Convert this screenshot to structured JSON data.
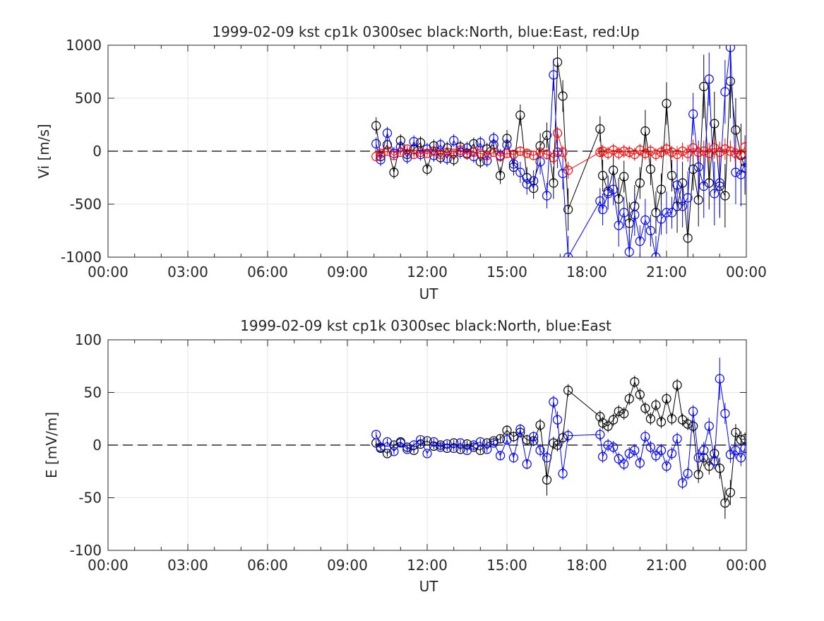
{
  "chart_data": [
    {
      "type": "scatter",
      "title": "1999-02-09 kst cp1k 0300sec black:North, blue:East, red:Up",
      "xlabel": "UT",
      "ylabel": "Vi [m/s]",
      "xlim": [
        0,
        24
      ],
      "ylim": [
        -1000,
        1000
      ],
      "x_ticks": [
        "00:00",
        "03:00",
        "06:00",
        "09:00",
        "12:00",
        "15:00",
        "18:00",
        "21:00",
        "00:00"
      ],
      "y_ticks": [
        "1000",
        "500",
        "0",
        "-500",
        "-1000"
      ],
      "y_tick_values": [
        1000,
        500,
        0,
        -500,
        -1000
      ],
      "grid": true,
      "zero_line": "dashed",
      "series": [
        {
          "name": "North",
          "color": "#000000",
          "x": [
            10.08,
            10.25,
            10.5,
            10.75,
            11.0,
            11.25,
            11.5,
            11.75,
            12.0,
            12.25,
            12.5,
            12.75,
            13.0,
            13.25,
            13.5,
            13.75,
            14.0,
            14.25,
            14.5,
            14.75,
            15.0,
            15.25,
            15.5,
            15.75,
            16.0,
            16.25,
            16.5,
            16.75,
            16.9,
            17.1,
            17.3,
            18.5,
            18.6,
            18.8,
            19.0,
            19.2,
            19.4,
            19.6,
            19.8,
            20.0,
            20.2,
            20.4,
            20.6,
            20.8,
            21.0,
            21.2,
            21.4,
            21.6,
            21.8,
            22.0,
            22.2,
            22.4,
            22.6,
            22.8,
            23.0,
            23.2,
            23.4,
            23.6,
            23.8,
            23.95
          ],
          "y": [
            240,
            -50,
            60,
            -200,
            100,
            -30,
            20,
            80,
            -170,
            50,
            -60,
            30,
            -80,
            40,
            -20,
            70,
            -100,
            20,
            60,
            -230,
            120,
            -150,
            340,
            -250,
            -350,
            50,
            150,
            -300,
            840,
            520,
            -550,
            210,
            -230,
            -380,
            -180,
            -450,
            -240,
            -680,
            -520,
            -300,
            190,
            -170,
            -580,
            -360,
            450,
            -230,
            -520,
            -300,
            -820,
            -170,
            -460,
            610,
            -300,
            260,
            -330,
            -420,
            660,
            200,
            -40,
            -160
          ],
          "y_err": [
            80,
            60,
            60,
            60,
            60,
            60,
            60,
            60,
            60,
            60,
            60,
            60,
            60,
            60,
            60,
            60,
            60,
            60,
            60,
            80,
            80,
            80,
            100,
            100,
            100,
            120,
            120,
            150,
            150,
            150,
            200,
            120,
            150,
            150,
            150,
            200,
            150,
            200,
            200,
            150,
            200,
            150,
            200,
            150,
            200,
            150,
            250,
            200,
            250,
            200,
            250,
            300,
            250,
            300,
            300,
            300,
            350,
            300,
            300,
            250
          ]
        },
        {
          "name": "East",
          "color": "#0000ff",
          "x": [
            10.08,
            10.25,
            10.5,
            10.75,
            11.0,
            11.25,
            11.5,
            11.75,
            12.0,
            12.25,
            12.5,
            12.75,
            13.0,
            13.25,
            13.5,
            13.75,
            14.0,
            14.25,
            14.5,
            14.75,
            15.0,
            15.25,
            15.5,
            15.75,
            16.0,
            16.25,
            16.5,
            16.75,
            16.9,
            17.1,
            17.3,
            18.5,
            18.6,
            18.8,
            19.0,
            19.2,
            19.4,
            19.6,
            19.8,
            20.0,
            20.2,
            20.4,
            20.6,
            20.8,
            21.0,
            21.2,
            21.4,
            21.6,
            21.8,
            22.0,
            22.2,
            22.4,
            22.6,
            22.8,
            23.0,
            23.2,
            23.4,
            23.6,
            23.8,
            23.95
          ],
          "y": [
            70,
            -80,
            170,
            -20,
            40,
            -60,
            90,
            -30,
            20,
            -40,
            60,
            -70,
            100,
            -10,
            30,
            -50,
            80,
            -90,
            120,
            -40,
            60,
            -120,
            -200,
            -310,
            -280,
            -100,
            -420,
            720,
            -10,
            -210,
            -1000,
            -470,
            -550,
            -400,
            -360,
            -700,
            -580,
            -950,
            -600,
            -850,
            -650,
            -750,
            -1000,
            -640,
            -580,
            -580,
            -320,
            -520,
            -440,
            350,
            -150,
            -330,
            680,
            -400,
            -300,
            560,
            980,
            -200,
            -220,
            -100
          ],
          "y_err": [
            60,
            60,
            60,
            60,
            60,
            60,
            60,
            60,
            60,
            60,
            60,
            60,
            60,
            60,
            60,
            60,
            60,
            60,
            60,
            60,
            80,
            80,
            100,
            100,
            100,
            120,
            120,
            150,
            150,
            150,
            200,
            120,
            150,
            150,
            150,
            200,
            150,
            200,
            200,
            150,
            200,
            150,
            200,
            150,
            200,
            150,
            250,
            200,
            250,
            200,
            250,
            300,
            250,
            300,
            300,
            300,
            350,
            300,
            300,
            250
          ]
        },
        {
          "name": "Up",
          "color": "#ff0000",
          "x": [
            10.08,
            10.25,
            10.5,
            10.75,
            11.0,
            11.25,
            11.5,
            11.75,
            12.0,
            12.25,
            12.5,
            12.75,
            13.0,
            13.25,
            13.5,
            13.75,
            14.0,
            14.25,
            14.5,
            14.75,
            15.0,
            15.25,
            15.5,
            15.75,
            16.0,
            16.25,
            16.5,
            16.75,
            16.9,
            17.1,
            17.3,
            18.5,
            18.6,
            18.8,
            19.0,
            19.2,
            19.4,
            19.6,
            19.8,
            20.0,
            20.2,
            20.4,
            20.6,
            20.8,
            21.0,
            21.2,
            21.4,
            21.6,
            21.8,
            22.0,
            22.2,
            22.4,
            22.6,
            22.8,
            23.0,
            23.2,
            23.4,
            23.6,
            23.8,
            23.95
          ],
          "y": [
            -50,
            -20,
            0,
            -40,
            -10,
            20,
            -30,
            -10,
            -20,
            0,
            -30,
            -10,
            -20,
            10,
            -30,
            -10,
            -20,
            -40,
            -10,
            -50,
            -20,
            -30,
            0,
            -20,
            -40,
            -10,
            -30,
            -60,
            170,
            -10,
            -180,
            -10,
            0,
            -20,
            10,
            -20,
            0,
            -10,
            -30,
            10,
            -20,
            0,
            -30,
            -10,
            20,
            -10,
            -30,
            0,
            -20,
            30,
            -10,
            0,
            -20,
            30,
            -10,
            20,
            0,
            -20,
            -30,
            40
          ],
          "y_err": [
            30,
            30,
            30,
            30,
            30,
            30,
            30,
            30,
            30,
            30,
            30,
            30,
            30,
            30,
            30,
            30,
            30,
            30,
            30,
            30,
            40,
            40,
            40,
            40,
            40,
            50,
            50,
            60,
            60,
            60,
            80,
            50,
            60,
            60,
            60,
            60,
            60,
            60,
            60,
            60,
            60,
            60,
            60,
            60,
            60,
            60,
            80,
            80,
            80,
            80,
            80,
            100,
            100,
            100,
            100,
            100,
            100,
            100,
            100,
            80
          ]
        }
      ]
    },
    {
      "type": "scatter",
      "title": "1999-02-09 kst cp1k 0300sec black:North, blue:East",
      "xlabel": "UT",
      "ylabel": "E [mV/m]",
      "xlim": [
        0,
        24
      ],
      "ylim": [
        -100,
        100
      ],
      "x_ticks": [
        "00:00",
        "03:00",
        "06:00",
        "09:00",
        "12:00",
        "15:00",
        "18:00",
        "21:00",
        "00:00"
      ],
      "y_ticks": [
        "100",
        "50",
        "0",
        "-50",
        "-100"
      ],
      "y_tick_values": [
        100,
        50,
        0,
        -50,
        -100
      ],
      "grid": true,
      "zero_line": "dashed",
      "series": [
        {
          "name": "North",
          "color": "#000000",
          "x": [
            10.08,
            10.25,
            10.5,
            10.75,
            11.0,
            11.25,
            11.5,
            11.75,
            12.0,
            12.25,
            12.5,
            12.75,
            13.0,
            13.25,
            13.5,
            13.75,
            14.0,
            14.25,
            14.5,
            14.75,
            15.0,
            15.25,
            15.5,
            15.75,
            16.0,
            16.25,
            16.5,
            16.75,
            16.9,
            17.1,
            17.3,
            18.5,
            18.6,
            18.8,
            19.0,
            19.2,
            19.4,
            19.6,
            19.8,
            20.0,
            20.2,
            20.4,
            20.6,
            20.8,
            21.0,
            21.2,
            21.4,
            21.6,
            21.8,
            22.0,
            22.2,
            22.4,
            22.6,
            22.8,
            23.0,
            23.2,
            23.4,
            23.6,
            23.8,
            23.95
          ],
          "y": [
            2,
            -3,
            -8,
            0,
            3,
            -2,
            -5,
            1,
            4,
            -1,
            0,
            -3,
            2,
            -4,
            1,
            -2,
            -5,
            2,
            4,
            6,
            14,
            8,
            12,
            5,
            4,
            19,
            -33,
            2,
            0,
            7,
            52,
            27,
            21,
            18,
            24,
            32,
            30,
            44,
            60,
            48,
            35,
            25,
            38,
            22,
            44,
            25,
            57,
            24,
            20,
            18,
            -28,
            -12,
            -20,
            -8,
            -22,
            -55,
            -45,
            12,
            5,
            6
          ],
          "y_err": [
            3,
            3,
            3,
            3,
            3,
            3,
            3,
            3,
            3,
            3,
            3,
            3,
            3,
            3,
            3,
            3,
            3,
            3,
            3,
            4,
            5,
            5,
            5,
            5,
            5,
            6,
            15,
            6,
            6,
            6,
            6,
            6,
            6,
            6,
            6,
            6,
            6,
            6,
            6,
            6,
            6,
            6,
            6,
            6,
            6,
            6,
            6,
            6,
            6,
            6,
            8,
            8,
            8,
            8,
            10,
            15,
            12,
            8,
            8,
            6
          ]
        },
        {
          "name": "East",
          "color": "#0000ff",
          "x": [
            10.08,
            10.25,
            10.5,
            10.75,
            11.0,
            11.25,
            11.5,
            11.75,
            12.0,
            12.25,
            12.5,
            12.75,
            13.0,
            13.25,
            13.5,
            13.75,
            14.0,
            14.25,
            14.5,
            14.75,
            15.0,
            15.25,
            15.5,
            15.75,
            16.0,
            16.25,
            16.5,
            16.75,
            16.9,
            17.1,
            17.3,
            18.5,
            18.6,
            18.8,
            19.0,
            19.2,
            19.4,
            19.6,
            19.8,
            20.0,
            20.2,
            20.4,
            20.6,
            20.8,
            21.0,
            21.2,
            21.4,
            21.6,
            21.8,
            22.0,
            22.2,
            22.4,
            22.6,
            22.8,
            23.0,
            23.2,
            23.4,
            23.6,
            23.8,
            23.95
          ],
          "y": [
            10,
            -2,
            3,
            -6,
            2,
            -4,
            0,
            5,
            -8,
            3,
            -2,
            1,
            -3,
            2,
            -5,
            0,
            3,
            -4,
            2,
            -10,
            5,
            -12,
            15,
            -18,
            8,
            -5,
            -12,
            41,
            24,
            -27,
            9,
            10,
            -11,
            0,
            -2,
            -13,
            -18,
            -8,
            -5,
            -17,
            8,
            -2,
            -10,
            -5,
            -20,
            -8,
            6,
            -36,
            -27,
            32,
            -12,
            -5,
            18,
            -15,
            63,
            30,
            -9,
            -5,
            -12,
            -3
          ],
          "y_err": [
            3,
            3,
            3,
            3,
            3,
            3,
            3,
            3,
            3,
            3,
            3,
            3,
            3,
            3,
            3,
            3,
            3,
            3,
            3,
            4,
            5,
            5,
            5,
            5,
            5,
            6,
            6,
            6,
            8,
            6,
            6,
            6,
            6,
            6,
            6,
            6,
            6,
            6,
            6,
            6,
            6,
            6,
            6,
            6,
            6,
            6,
            6,
            6,
            6,
            6,
            8,
            8,
            8,
            8,
            20,
            10,
            8,
            8,
            8,
            6
          ]
        }
      ]
    }
  ]
}
